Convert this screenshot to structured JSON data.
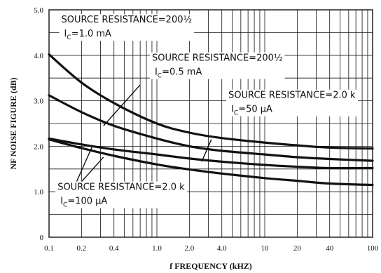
{
  "chart_data": {
    "type": "line",
    "title": "",
    "xlabel": "f  FREQUENCY (kHZ)",
    "ylabel": "NF NOISE FIGURE (dB)",
    "xscale": "log",
    "xlim": [
      0.1,
      100
    ],
    "ylim": [
      0,
      5.0
    ],
    "grid": true,
    "x_ticks": [
      {
        "value": 0.1,
        "label": "0.1"
      },
      {
        "value": 0.2,
        "label": "0.2"
      },
      {
        "value": 0.4,
        "label": "0.4"
      },
      {
        "value": 1.0,
        "label": "1.0"
      },
      {
        "value": 2.0,
        "label": "2.0"
      },
      {
        "value": 4.0,
        "label": "4.0"
      },
      {
        "value": 10,
        "label": "10"
      },
      {
        "value": 20,
        "label": "20"
      },
      {
        "value": 40,
        "label": "40"
      },
      {
        "value": 100,
        "label": "100"
      }
    ],
    "y_ticks": [
      {
        "value": 0,
        "label": "0"
      },
      {
        "value": 1.0,
        "label": "1.0"
      },
      {
        "value": 2.0,
        "label": "2.0"
      },
      {
        "value": 3.0,
        "label": "3.0"
      },
      {
        "value": 4.0,
        "label": "4.0"
      },
      {
        "value": 5.0,
        "label": "5.0"
      }
    ],
    "series": [
      {
        "x": [
          0.1,
          0.2,
          0.4,
          1.0,
          2.0,
          4.0,
          10,
          20,
          40,
          100
        ],
        "values": [
          4.02,
          3.4,
          2.95,
          2.5,
          2.3,
          2.18,
          2.08,
          2.02,
          1.97,
          1.95
        ]
      },
      {
        "x": [
          0.1,
          0.2,
          0.4,
          1.0,
          2.0,
          4.0,
          10,
          20,
          40,
          100
        ],
        "values": [
          3.12,
          2.75,
          2.45,
          2.17,
          2.0,
          1.9,
          1.82,
          1.76,
          1.72,
          1.68
        ]
      },
      {
        "x": [
          0.1,
          0.2,
          0.4,
          1.0,
          2.0,
          4.0,
          10,
          20,
          40,
          100
        ],
        "values": [
          2.17,
          2.04,
          1.93,
          1.82,
          1.73,
          1.66,
          1.59,
          1.55,
          1.52,
          1.52
        ]
      },
      {
        "x": [
          0.1,
          0.2,
          0.4,
          1.0,
          2.0,
          4.0,
          10,
          20,
          40,
          100
        ],
        "values": [
          2.15,
          1.96,
          1.79,
          1.6,
          1.49,
          1.4,
          1.3,
          1.24,
          1.18,
          1.15
        ]
      }
    ],
    "annotations": [
      {
        "id": "a1",
        "line1": "SOURCE RESISTANCE=200½",
        "line2_main": "I",
        "line2_sub": "C",
        "line2_rest": "=1.0 mA"
      },
      {
        "id": "a2",
        "line1": "SOURCE RESISTANCE=200½",
        "line2_main": "I",
        "line2_sub": "C",
        "line2_rest": "=0.5 mA"
      },
      {
        "id": "a3",
        "line1": "SOURCE RESISTANCE=2.0 k",
        "line2_main": "I",
        "line2_sub": "C",
        "line2_rest": "=50 µA"
      },
      {
        "id": "a4",
        "line1": "SOURCE RESISTANCE=2.0 k",
        "line2_main": "I",
        "line2_sub": "C",
        "line2_rest": "=100 µA"
      }
    ]
  }
}
